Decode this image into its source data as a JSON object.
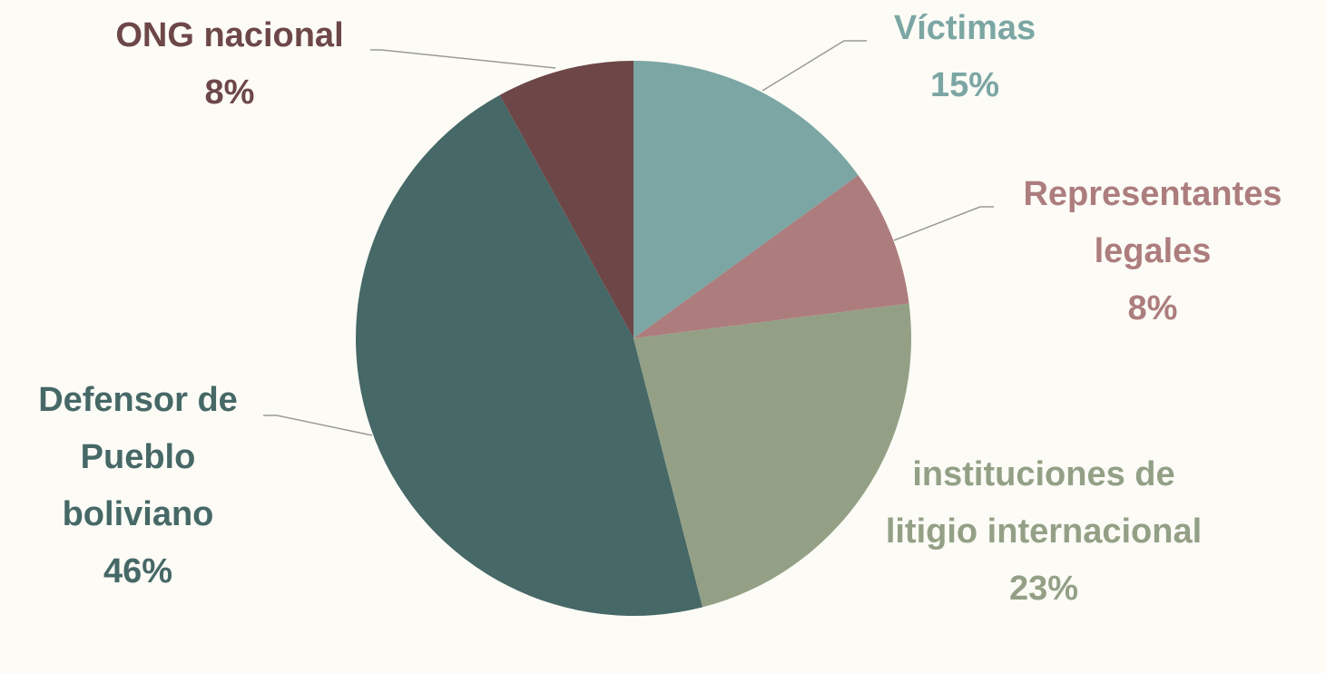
{
  "chart_data": {
    "type": "pie",
    "categories": [
      "Víctimas",
      "Representantes legales",
      "instituciones de litigio internacional",
      "Defensor de Pueblo boliviano",
      "ONG nacional"
    ],
    "values": [
      15,
      8,
      23,
      46,
      8
    ],
    "value_labels": [
      "15%",
      "8%",
      "23%",
      "46%",
      "8%"
    ],
    "colors": [
      "#7ba6a3",
      "#ad7d7e",
      "#93a086",
      "#466866",
      "#6d4748"
    ]
  }
}
